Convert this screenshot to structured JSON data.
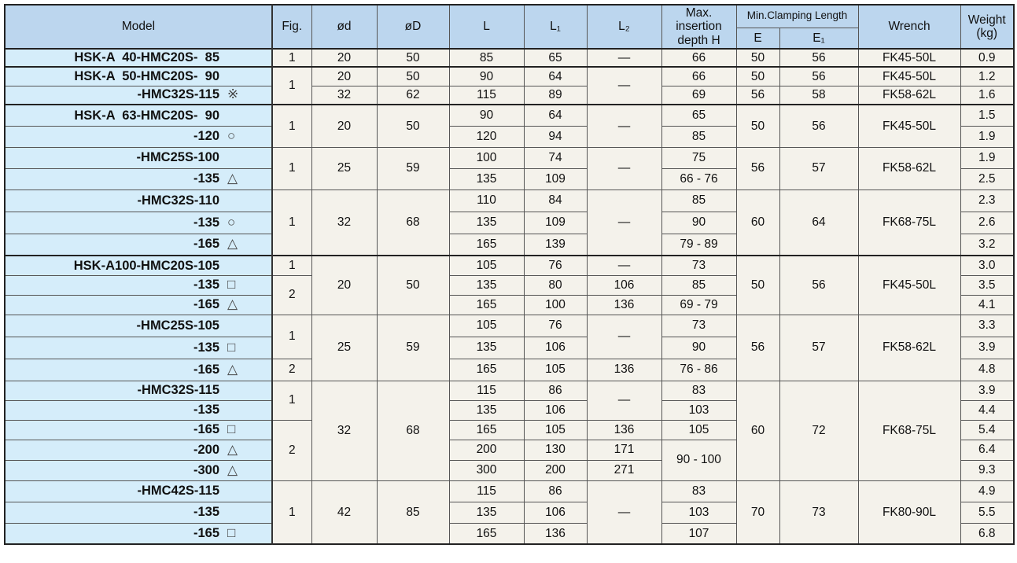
{
  "header": {
    "model": "Model",
    "fig": "Fig.",
    "d": "ød",
    "D": "øD",
    "L": "L",
    "L1": "L₁",
    "L2": "L₂",
    "H": "Max. insertion depth H",
    "clamp": "Min.Clamping Length",
    "E": "E",
    "E1": "E₁",
    "wrench": "Wrench",
    "weight": "Weight (kg)"
  },
  "colors": {
    "header_bg": "#bcd6ee",
    "model_bg": "#d5edfa",
    "cell_bg": "#f4f2eb"
  },
  "rows": [
    {
      "model": "HSK-A  40-HMC20S-  85",
      "sym": "",
      "thick": true,
      "cells": [
        {
          "v": "1"
        },
        {
          "v": "20"
        },
        {
          "v": "50"
        },
        {
          "v": "85"
        },
        {
          "v": "65"
        },
        {
          "v": "—"
        },
        {
          "v": "66"
        },
        {
          "v": "50"
        },
        {
          "v": "56"
        },
        {
          "v": "FK45-50L"
        },
        {
          "v": "0.9"
        }
      ]
    },
    {
      "model": "HSK-A  50-HMC20S-  90",
      "sym": "",
      "thick": true,
      "cells": [
        {
          "v": "1",
          "rs": 2
        },
        {
          "v": "20"
        },
        {
          "v": "50"
        },
        {
          "v": "90"
        },
        {
          "v": "64"
        },
        {
          "v": "—",
          "rs": 2
        },
        {
          "v": "66"
        },
        {
          "v": "50"
        },
        {
          "v": "56"
        },
        {
          "v": "FK45-50L"
        },
        {
          "v": "1.2"
        }
      ]
    },
    {
      "model": "-HMC32S-115",
      "sym": "※",
      "cells": [
        {
          "v": "32"
        },
        {
          "v": "62"
        },
        {
          "v": "115"
        },
        {
          "v": "89"
        },
        {
          "v": "69"
        },
        {
          "v": "56"
        },
        {
          "v": "58"
        },
        {
          "v": "FK58-62L"
        },
        {
          "v": "1.6"
        }
      ]
    },
    {
      "model": "HSK-A  63-HMC20S-  90",
      "sym": "",
      "thick": true,
      "cells": [
        {
          "v": "1",
          "rs": 2
        },
        {
          "v": "20",
          "rs": 2
        },
        {
          "v": "50",
          "rs": 2
        },
        {
          "v": "90"
        },
        {
          "v": "64"
        },
        {
          "v": "—",
          "rs": 2
        },
        {
          "v": "65"
        },
        {
          "v": "50",
          "rs": 2
        },
        {
          "v": "56",
          "rs": 2
        },
        {
          "v": "FK45-50L",
          "rs": 2
        },
        {
          "v": "1.5"
        }
      ]
    },
    {
      "model": "-120",
      "sym": "○",
      "cells": [
        {
          "v": "120"
        },
        {
          "v": "94"
        },
        {
          "v": "85"
        },
        {
          "v": "1.9"
        }
      ]
    },
    {
      "model": "-HMC25S-100",
      "sym": "",
      "cells": [
        {
          "v": "1",
          "rs": 2
        },
        {
          "v": "25",
          "rs": 2
        },
        {
          "v": "59",
          "rs": 2
        },
        {
          "v": "100"
        },
        {
          "v": "74"
        },
        {
          "v": "—",
          "rs": 2
        },
        {
          "v": "75"
        },
        {
          "v": "56",
          "rs": 2
        },
        {
          "v": "57",
          "rs": 2
        },
        {
          "v": "FK58-62L",
          "rs": 2
        },
        {
          "v": "1.9"
        }
      ]
    },
    {
      "model": "-135",
      "sym": "△",
      "cells": [
        {
          "v": "135"
        },
        {
          "v": "109"
        },
        {
          "v": "66 - 76"
        },
        {
          "v": "2.5"
        }
      ]
    },
    {
      "model": "-HMC32S-110",
      "sym": "",
      "cells": [
        {
          "v": "1",
          "rs": 3
        },
        {
          "v": "32",
          "rs": 3
        },
        {
          "v": "68",
          "rs": 3
        },
        {
          "v": "110"
        },
        {
          "v": "84"
        },
        {
          "v": "—",
          "rs": 3
        },
        {
          "v": "85"
        },
        {
          "v": "60",
          "rs": 3
        },
        {
          "v": "64",
          "rs": 3
        },
        {
          "v": "FK68-75L",
          "rs": 3
        },
        {
          "v": "2.3"
        }
      ]
    },
    {
      "model": "-135",
      "sym": "○",
      "cells": [
        {
          "v": "135"
        },
        {
          "v": "109"
        },
        {
          "v": "90"
        },
        {
          "v": "2.6"
        }
      ]
    },
    {
      "model": "-165",
      "sym": "△",
      "cells": [
        {
          "v": "165"
        },
        {
          "v": "139"
        },
        {
          "v": "79 - 89"
        },
        {
          "v": "3.2"
        }
      ]
    },
    {
      "model": "HSK-A100-HMC20S-105",
      "sym": "",
      "thick": true,
      "cells": [
        {
          "v": "1"
        },
        {
          "v": "20",
          "rs": 3
        },
        {
          "v": "50",
          "rs": 3
        },
        {
          "v": "105"
        },
        {
          "v": "76"
        },
        {
          "v": "—"
        },
        {
          "v": "73"
        },
        {
          "v": "50",
          "rs": 3
        },
        {
          "v": "56",
          "rs": 3
        },
        {
          "v": "FK45-50L",
          "rs": 3
        },
        {
          "v": "3.0"
        }
      ]
    },
    {
      "model": "-135",
      "sym": "□",
      "cells": [
        {
          "v": "2",
          "rs": 2
        },
        {
          "v": "135"
        },
        {
          "v": "80"
        },
        {
          "v": "106"
        },
        {
          "v": "85"
        },
        {
          "v": "3.5"
        }
      ]
    },
    {
      "model": "-165",
      "sym": "△",
      "cells": [
        {
          "v": "165"
        },
        {
          "v": "100"
        },
        {
          "v": "136"
        },
        {
          "v": "69 - 79"
        },
        {
          "v": "4.1"
        }
      ]
    },
    {
      "model": "-HMC25S-105",
      "sym": "",
      "cells": [
        {
          "v": "1",
          "rs": 2
        },
        {
          "v": "25",
          "rs": 3
        },
        {
          "v": "59",
          "rs": 3
        },
        {
          "v": "105"
        },
        {
          "v": "76"
        },
        {
          "v": "—",
          "rs": 2
        },
        {
          "v": "73"
        },
        {
          "v": "56",
          "rs": 3
        },
        {
          "v": "57",
          "rs": 3
        },
        {
          "v": "FK58-62L",
          "rs": 3
        },
        {
          "v": "3.3"
        }
      ]
    },
    {
      "model": "-135",
      "sym": "□",
      "cells": [
        {
          "v": "135"
        },
        {
          "v": "106"
        },
        {
          "v": "90"
        },
        {
          "v": "3.9"
        }
      ]
    },
    {
      "model": "-165",
      "sym": "△",
      "cells": [
        {
          "v": "2"
        },
        {
          "v": "165"
        },
        {
          "v": "105"
        },
        {
          "v": "136"
        },
        {
          "v": "76 - 86"
        },
        {
          "v": "4.8"
        }
      ]
    },
    {
      "model": "-HMC32S-115",
      "sym": "",
      "cells": [
        {
          "v": "1",
          "rs": 2
        },
        {
          "v": "32",
          "rs": 5
        },
        {
          "v": "68",
          "rs": 5
        },
        {
          "v": "115"
        },
        {
          "v": "86"
        },
        {
          "v": "—",
          "rs": 2
        },
        {
          "v": "83"
        },
        {
          "v": "60",
          "rs": 5
        },
        {
          "v": "72",
          "rs": 5
        },
        {
          "v": "FK68-75L",
          "rs": 5
        },
        {
          "v": "3.9"
        }
      ]
    },
    {
      "model": "-135",
      "sym": "",
      "cells": [
        {
          "v": "135"
        },
        {
          "v": "106"
        },
        {
          "v": "103"
        },
        {
          "v": "4.4"
        }
      ]
    },
    {
      "model": "-165",
      "sym": "□",
      "cells": [
        {
          "v": "2",
          "rs": 3
        },
        {
          "v": "165"
        },
        {
          "v": "105"
        },
        {
          "v": "136"
        },
        {
          "v": "105"
        },
        {
          "v": "5.4"
        }
      ]
    },
    {
      "model": "-200",
      "sym": "△",
      "cells": [
        {
          "v": "200"
        },
        {
          "v": "130"
        },
        {
          "v": "171"
        },
        {
          "v": "90 - 100",
          "rs": 2
        },
        {
          "v": "6.4"
        }
      ]
    },
    {
      "model": "-300",
      "sym": "△",
      "cells": [
        {
          "v": "300"
        },
        {
          "v": "200"
        },
        {
          "v": "271"
        },
        {
          "v": "9.3"
        }
      ]
    },
    {
      "model": "-HMC42S-115",
      "sym": "",
      "cells": [
        {
          "v": "1",
          "rs": 3
        },
        {
          "v": "42",
          "rs": 3
        },
        {
          "v": "85",
          "rs": 3
        },
        {
          "v": "115"
        },
        {
          "v": "86"
        },
        {
          "v": "—",
          "rs": 3
        },
        {
          "v": "83"
        },
        {
          "v": "70",
          "rs": 3
        },
        {
          "v": "73",
          "rs": 3
        },
        {
          "v": "FK80-90L",
          "rs": 3
        },
        {
          "v": "4.9"
        }
      ]
    },
    {
      "model": "-135",
      "sym": "",
      "cells": [
        {
          "v": "135"
        },
        {
          "v": "106"
        },
        {
          "v": "103"
        },
        {
          "v": "5.5"
        }
      ]
    },
    {
      "model": "-165",
      "sym": "□",
      "cells": [
        {
          "v": "165"
        },
        {
          "v": "136"
        },
        {
          "v": "107"
        },
        {
          "v": "6.8"
        }
      ]
    }
  ]
}
